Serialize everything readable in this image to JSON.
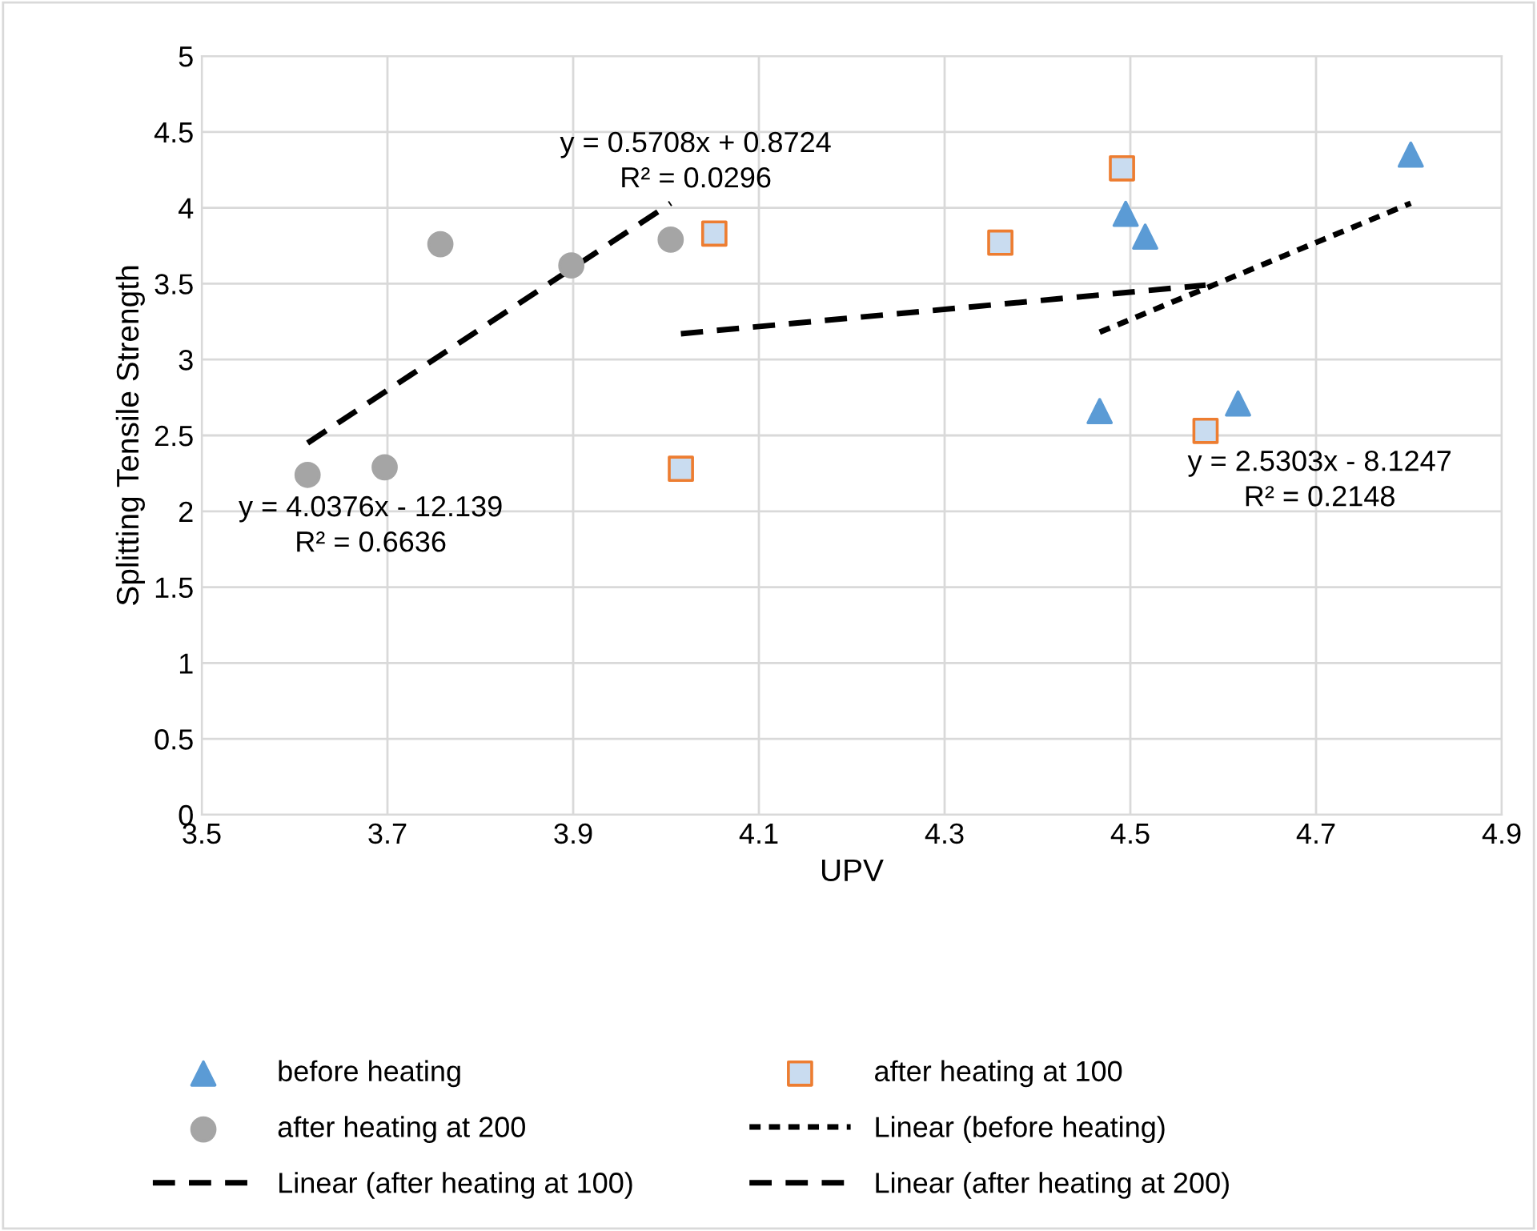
{
  "chart_data": {
    "type": "scatter",
    "xlabel": "UPV",
    "ylabel": "Splitting Tensile Strength",
    "xlim": [
      3.5,
      4.9
    ],
    "xticks": [
      3.5,
      3.7,
      3.9,
      4.1,
      4.3,
      4.5,
      4.7,
      4.9
    ],
    "ylim": [
      0,
      5
    ],
    "yticks": [
      0,
      0.5,
      1,
      1.5,
      2,
      2.5,
      3,
      3.5,
      4,
      4.5,
      5
    ],
    "grid": true,
    "legend": "bottom",
    "series": [
      {
        "name": "before heating",
        "marker": "triangle",
        "color": "#5b9bd5",
        "x": [
          4.802,
          4.495,
          4.516,
          4.467,
          4.616
        ],
        "values": [
          4.35,
          3.96,
          3.81,
          2.66,
          2.71
        ]
      },
      {
        "name": "after heating at 100",
        "marker": "square",
        "color": "#ed7d31",
        "x": [
          4.052,
          4.36,
          4.491,
          4.581,
          4.016
        ],
        "values": [
          3.83,
          3.77,
          4.26,
          2.53,
          2.28
        ]
      },
      {
        "name": "after heating at 200",
        "marker": "circle",
        "color": "#a5a5a5",
        "x": [
          3.614,
          3.697,
          3.757,
          3.898,
          4.005
        ],
        "values": [
          2.24,
          2.29,
          3.76,
          3.62,
          3.79
        ]
      },
      {
        "name": "Linear (before heating)",
        "type": "line",
        "line_style": "dotted",
        "color": "#000000",
        "x": [
          4.467,
          4.802
        ],
        "values": [
          3.18,
          4.03
        ]
      },
      {
        "name": "Linear (after heating at 100)",
        "type": "line",
        "line_style": "dashed",
        "color": "#000000",
        "x": [
          4.016,
          4.581
        ],
        "values": [
          3.17,
          3.49
        ]
      },
      {
        "name": "Linear (after heating at 200)",
        "type": "line",
        "line_style": "dashed",
        "color": "#000000",
        "x": [
          3.614,
          4.005
        ],
        "values": [
          2.45,
          4.03
        ]
      }
    ],
    "annotations": [
      "y = 0.5708x + 0.8724\nR² = 0.0296",
      "y = 2.5303x - 8.1247\nR² = 0.2148",
      "y = 4.0376x - 12.139\nR² = 0.6636"
    ]
  }
}
